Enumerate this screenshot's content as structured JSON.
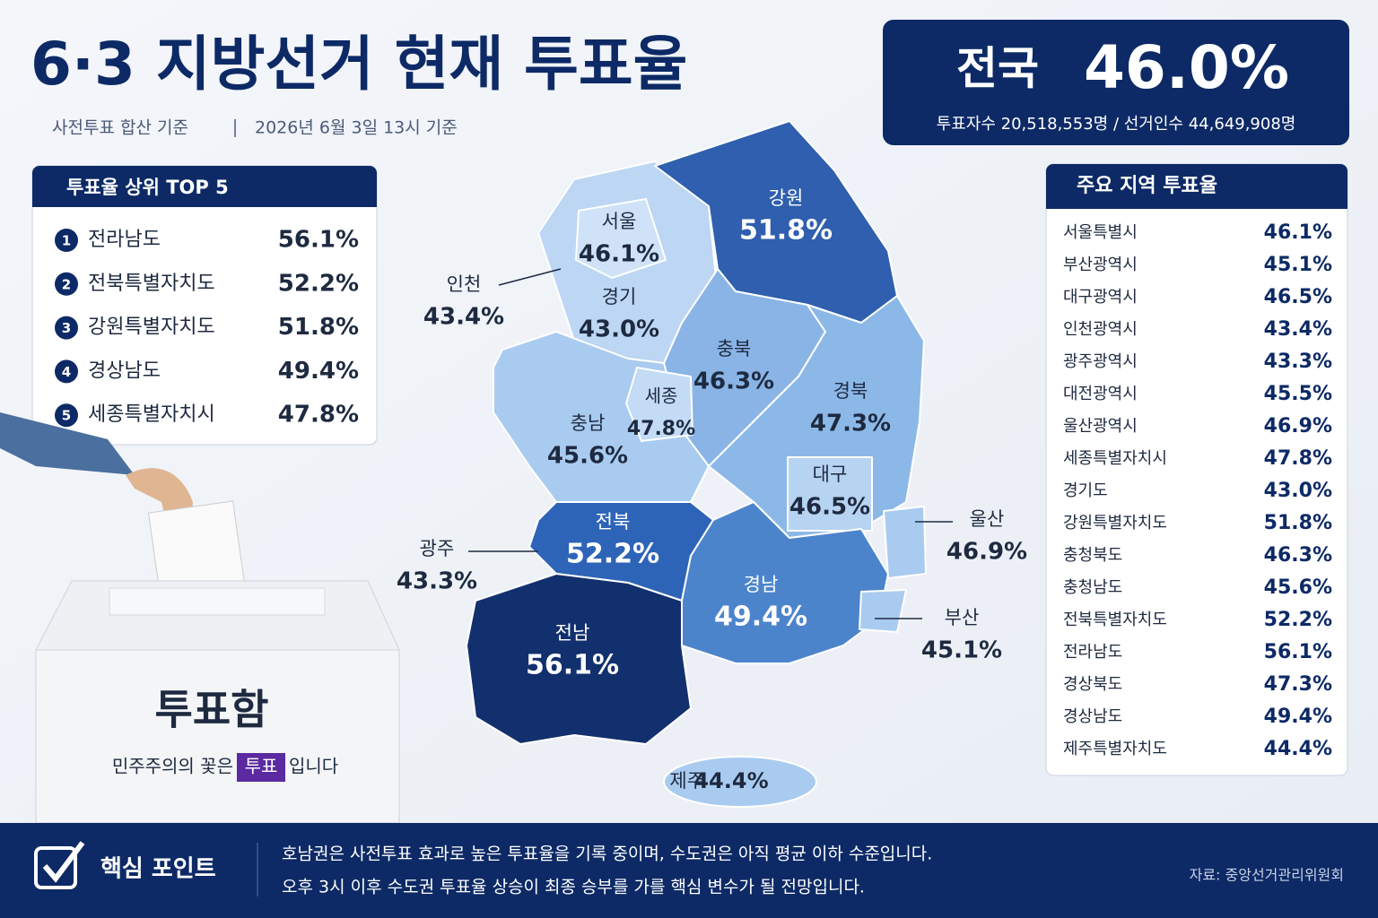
{
  "header": {
    "title": "6·3 지방선거 현재 투표율",
    "subtitle": "사전투표 합산 기준",
    "date": "2026년 6월 3일 13시 기준"
  },
  "national": {
    "label": "전국",
    "rate": "46.0%",
    "detail": "투표자수 20,518,553명 / 선거인수 44,649,908명"
  },
  "top5": {
    "title": "투표율 상위 TOP 5",
    "rows": [
      {
        "rank": "1",
        "name": "전라남도",
        "rate": "56.1%"
      },
      {
        "rank": "2",
        "name": "전북특별자치도",
        "rate": "52.2%"
      },
      {
        "rank": "3",
        "name": "강원특별자치도",
        "rate": "51.8%"
      },
      {
        "rank": "4",
        "name": "경상남도",
        "rate": "49.4%"
      },
      {
        "rank": "5",
        "name": "세종특별자치시",
        "rate": "47.8%"
      }
    ]
  },
  "map": {
    "regions": [
      {
        "name": "서울",
        "rate": "46.1%"
      },
      {
        "name": "인천",
        "rate": "43.4%"
      },
      {
        "name": "경기",
        "rate": "43.0%"
      },
      {
        "name": "강원",
        "rate": "51.8%"
      },
      {
        "name": "충북",
        "rate": "46.3%"
      },
      {
        "name": "세종",
        "rate": "47.8%"
      },
      {
        "name": "충남",
        "rate": "45.6%"
      },
      {
        "name": "경북",
        "rate": "47.3%"
      },
      {
        "name": "대구",
        "rate": "46.5%"
      },
      {
        "name": "울산",
        "rate": "46.9%"
      },
      {
        "name": "전북",
        "rate": "52.2%"
      },
      {
        "name": "광주",
        "rate": "43.3%"
      },
      {
        "name": "경남",
        "rate": "49.4%"
      },
      {
        "name": "부산",
        "rate": "45.1%"
      },
      {
        "name": "전남",
        "rate": "56.1%"
      },
      {
        "name": "제주",
        "rate": "44.4%"
      }
    ]
  },
  "regional": {
    "title": "주요 지역 투표율",
    "rows": [
      {
        "name": "서울특별시",
        "rate": "46.1%"
      },
      {
        "name": "부산광역시",
        "rate": "45.1%"
      },
      {
        "name": "대구광역시",
        "rate": "46.5%"
      },
      {
        "name": "인천광역시",
        "rate": "43.4%"
      },
      {
        "name": "광주광역시",
        "rate": "43.3%"
      },
      {
        "name": "대전광역시",
        "rate": "45.5%"
      },
      {
        "name": "울산광역시",
        "rate": "46.9%"
      },
      {
        "name": "세종특별자치시",
        "rate": "47.8%"
      },
      {
        "name": "경기도",
        "rate": "43.0%"
      },
      {
        "name": "강원특별자치도",
        "rate": "51.8%"
      },
      {
        "name": "충청북도",
        "rate": "46.3%"
      },
      {
        "name": "충청남도",
        "rate": "45.6%"
      },
      {
        "name": "전북특별자치도",
        "rate": "52.2%"
      },
      {
        "name": "전라남도",
        "rate": "56.1%"
      },
      {
        "name": "경상북도",
        "rate": "47.3%"
      },
      {
        "name": "경상남도",
        "rate": "49.4%"
      },
      {
        "name": "제주특별자치도",
        "rate": "44.4%"
      }
    ]
  },
  "ballot_box": {
    "label": "투표함",
    "slogan_before": "민주주의의 꽃은",
    "slogan_highlight": "투표",
    "slogan_after": "입니다"
  },
  "footer": {
    "title": "핵심 포인트",
    "lines": [
      "호남권은 사전투표 효과로 높은 투표율을 기록 중이며, 수도권은 아직 평균 이하 수준입니다.",
      "오후 3시 이후 수도권 투표율 상승이 최종 승부를 가를 핵심 변수가 될 전망입니다."
    ],
    "source": "자료: 중앙선거관리위원회"
  }
}
